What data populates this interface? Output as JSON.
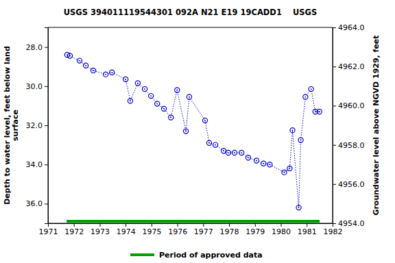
{
  "chart_data": {
    "type": "line",
    "title": "USGS 394011119544301 092A N21 E19 19CADD1    USGS",
    "y_label": [
      "Depth to water level, feet below land",
      "surface"
    ],
    "y2_label": "Groundwater level above NGVD 1929, feet",
    "xlim": [
      1971,
      1982
    ],
    "xticks": [
      1971,
      1972,
      1973,
      1974,
      1975,
      1976,
      1977,
      1978,
      1979,
      1980,
      1981,
      1982
    ],
    "ylim": [
      37,
      27
    ],
    "yticks": [
      {
        "value": 28,
        "label": "28.0"
      },
      {
        "value": 30,
        "label": "30.0"
      },
      {
        "value": 32,
        "label": "32.0"
      },
      {
        "value": 34,
        "label": "34.0"
      },
      {
        "value": 36,
        "label": "36.0"
      }
    ],
    "y2lim": [
      4954,
      4964
    ],
    "y2ticks": [
      {
        "value": 4954,
        "label": "4954.0"
      },
      {
        "value": 4956,
        "label": "4956.0"
      },
      {
        "value": 4958,
        "label": "4958.0"
      },
      {
        "value": 4960,
        "label": "4960.0"
      },
      {
        "value": 4962,
        "label": "4962.0"
      },
      {
        "value": 4964,
        "label": "4964.0"
      }
    ],
    "grid": false,
    "series": [
      {
        "name": "Depth to water level",
        "color": "#0000cc",
        "marker": "circle",
        "line_style": "dotted",
        "x": [
          1971.74,
          1971.85,
          1972.22,
          1972.46,
          1972.75,
          1973.23,
          1973.47,
          1974.0,
          1974.18,
          1974.47,
          1974.74,
          1974.98,
          1975.22,
          1975.48,
          1975.75,
          1975.99,
          1976.33,
          1976.46,
          1977.07,
          1977.23,
          1977.47,
          1977.79,
          1977.97,
          1978.21,
          1978.48,
          1978.74,
          1979.06,
          1979.33,
          1979.57,
          1980.13,
          1980.34,
          1980.45,
          1980.69,
          1980.77,
          1980.95,
          1981.17,
          1981.33,
          1981.49
        ],
        "values": [
          28.4,
          28.45,
          28.7,
          28.95,
          29.2,
          29.4,
          29.3,
          29.65,
          30.75,
          29.85,
          30.15,
          30.5,
          30.9,
          31.15,
          31.6,
          30.2,
          32.3,
          30.55,
          31.75,
          32.9,
          33.0,
          33.3,
          33.4,
          33.4,
          33.4,
          33.65,
          33.8,
          33.95,
          34.0,
          34.4,
          34.2,
          32.25,
          36.2,
          32.75,
          30.55,
          30.15,
          31.3,
          31.3
        ]
      }
    ],
    "approved_period": {
      "name": "Period of approved data",
      "color": "#00a000",
      "start": 1971.72,
      "end": 1981.5
    }
  }
}
